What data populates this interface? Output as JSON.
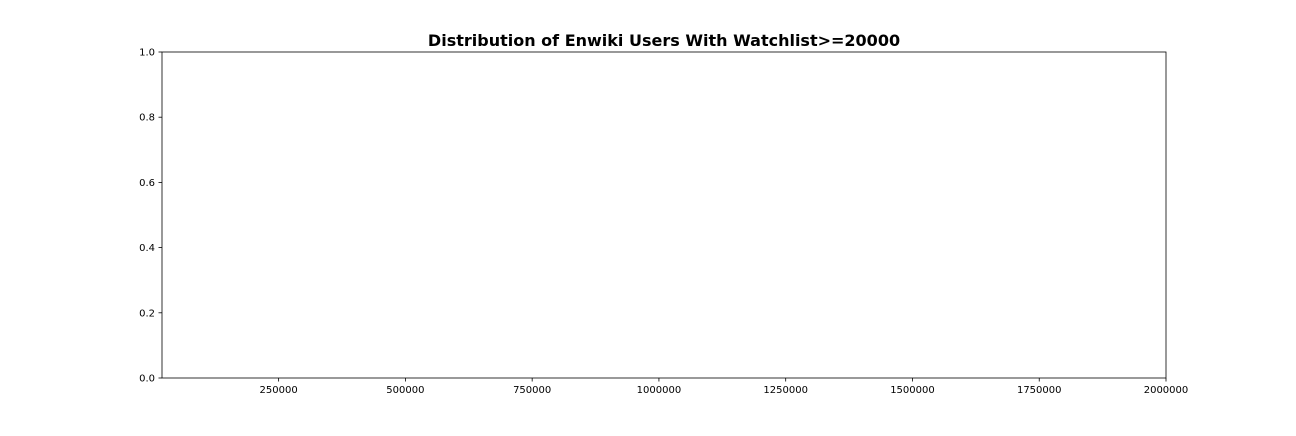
{
  "chart_data": {
    "type": "bar",
    "title": "Distribution of Enwiki Users With Watchlist>=20000",
    "xlabel": "",
    "ylabel": "",
    "xlim": [
      20000,
      2000000
    ],
    "ylim": [
      0.0,
      1.0
    ],
    "x_ticks": [
      250000,
      500000,
      750000,
      1000000,
      1250000,
      1500000,
      1750000,
      2000000
    ],
    "x_tick_labels": [
      "250000",
      "500000",
      "750000",
      "1000000",
      "1250000",
      "1500000",
      "1750000",
      "2000000"
    ],
    "y_ticks": [
      0.0,
      0.2,
      0.4,
      0.6,
      0.8,
      1.0
    ],
    "y_tick_labels": [
      "0.0",
      "0.2",
      "0.4",
      "0.6",
      "0.8",
      "1.0"
    ],
    "series": [],
    "grid": false,
    "legend": "none"
  }
}
